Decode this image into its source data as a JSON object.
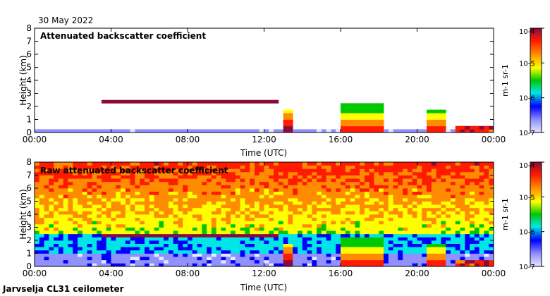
{
  "date_label": "30 May 2022",
  "footer_label": "Jarvselja CL31 ceilometer",
  "colors": {
    "deep_red": "#8b0a3c",
    "red": "#ff1a00",
    "orange": "#ff8c00",
    "yellow": "#ffff00",
    "green": "#00c800",
    "cyan": "#00e6e6",
    "blue": "#0000ff",
    "lavender": "#e6e6ff"
  },
  "chart_data": [
    {
      "type": "heatmap",
      "title": "Attenuated backscatter coefficient",
      "xlabel": "Time (UTC)",
      "ylabel": "Height (km)",
      "xlim": [
        0,
        24
      ],
      "ylim": [
        0,
        8
      ],
      "xticks": [
        "00:00",
        "04:00",
        "08:00",
        "12:00",
        "16:00",
        "20:00",
        "00:00"
      ],
      "yticks": [
        "0",
        "1",
        "2",
        "3",
        "4",
        "5",
        "6",
        "7",
        "8"
      ],
      "colorbar": {
        "label": "m-1 sr-1",
        "ticks": [
          "10-7",
          "10-6",
          "10-5",
          "10-4"
        ]
      },
      "features": [
        {
          "name": "cloud-layer",
          "start": 3.5,
          "end": 12.8,
          "height": 2.35,
          "level": 0.95
        },
        {
          "name": "precip-band-1",
          "start": 12.9,
          "end": 13.6,
          "top": 1.8,
          "level": 0.6
        },
        {
          "name": "precip-band-2",
          "start": 16.0,
          "end": 18.3,
          "top": 2.2,
          "level": 0.45
        },
        {
          "name": "precip-band-3",
          "start": 20.5,
          "end": 21.5,
          "top": 1.8,
          "level": 0.5
        }
      ]
    },
    {
      "type": "heatmap",
      "title": "Raw attenuated backscatter coefficient",
      "xlabel": "Time (UTC)",
      "ylabel": "Height (km)",
      "xlim": [
        0,
        24
      ],
      "ylim": [
        0,
        8
      ],
      "xticks": [
        "00:00",
        "04:00",
        "08:00",
        "12:00",
        "16:00",
        "20:00",
        "00:00"
      ],
      "yticks": [
        "0",
        "1",
        "2",
        "3",
        "4",
        "5",
        "6",
        "7",
        "8"
      ],
      "colorbar": {
        "label": "m-1 sr-1",
        "ticks": [
          "10-7",
          "10-6",
          "10-5",
          "10-4"
        ]
      },
      "features": [
        {
          "name": "cloud-layer",
          "start": 3.5,
          "end": 12.8,
          "height": 2.35,
          "level": 0.95
        },
        {
          "name": "precip-band-1",
          "start": 12.9,
          "end": 13.6,
          "top": 1.8,
          "level": 0.6
        },
        {
          "name": "precip-band-2",
          "start": 16.0,
          "end": 18.3,
          "top": 2.2,
          "level": 0.45
        },
        {
          "name": "precip-band-3",
          "start": 20.5,
          "end": 21.5,
          "top": 1.8,
          "level": 0.5
        }
      ]
    }
  ]
}
